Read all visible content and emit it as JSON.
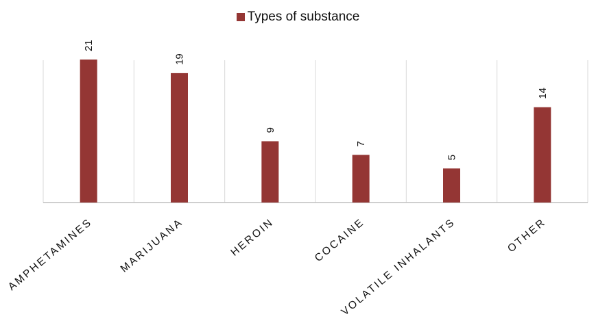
{
  "legend": {
    "label": "Types of substance"
  },
  "colors": {
    "bar": "#943634",
    "grid": "#d9d9d9",
    "axis": "#bfbfbf"
  },
  "chart_data": {
    "type": "bar",
    "categories": [
      "AMPHETAMINES",
      "MARIJUANA",
      "HEROIN",
      "COCAINE",
      "VOLATILE INHALANTS",
      "OTHER"
    ],
    "series": [
      {
        "name": "Types of substance",
        "values": [
          21,
          19,
          9,
          7,
          5,
          14
        ]
      }
    ],
    "ylim": [
      0,
      22
    ],
    "grid": "vertical category separators",
    "legend_position": "top"
  }
}
